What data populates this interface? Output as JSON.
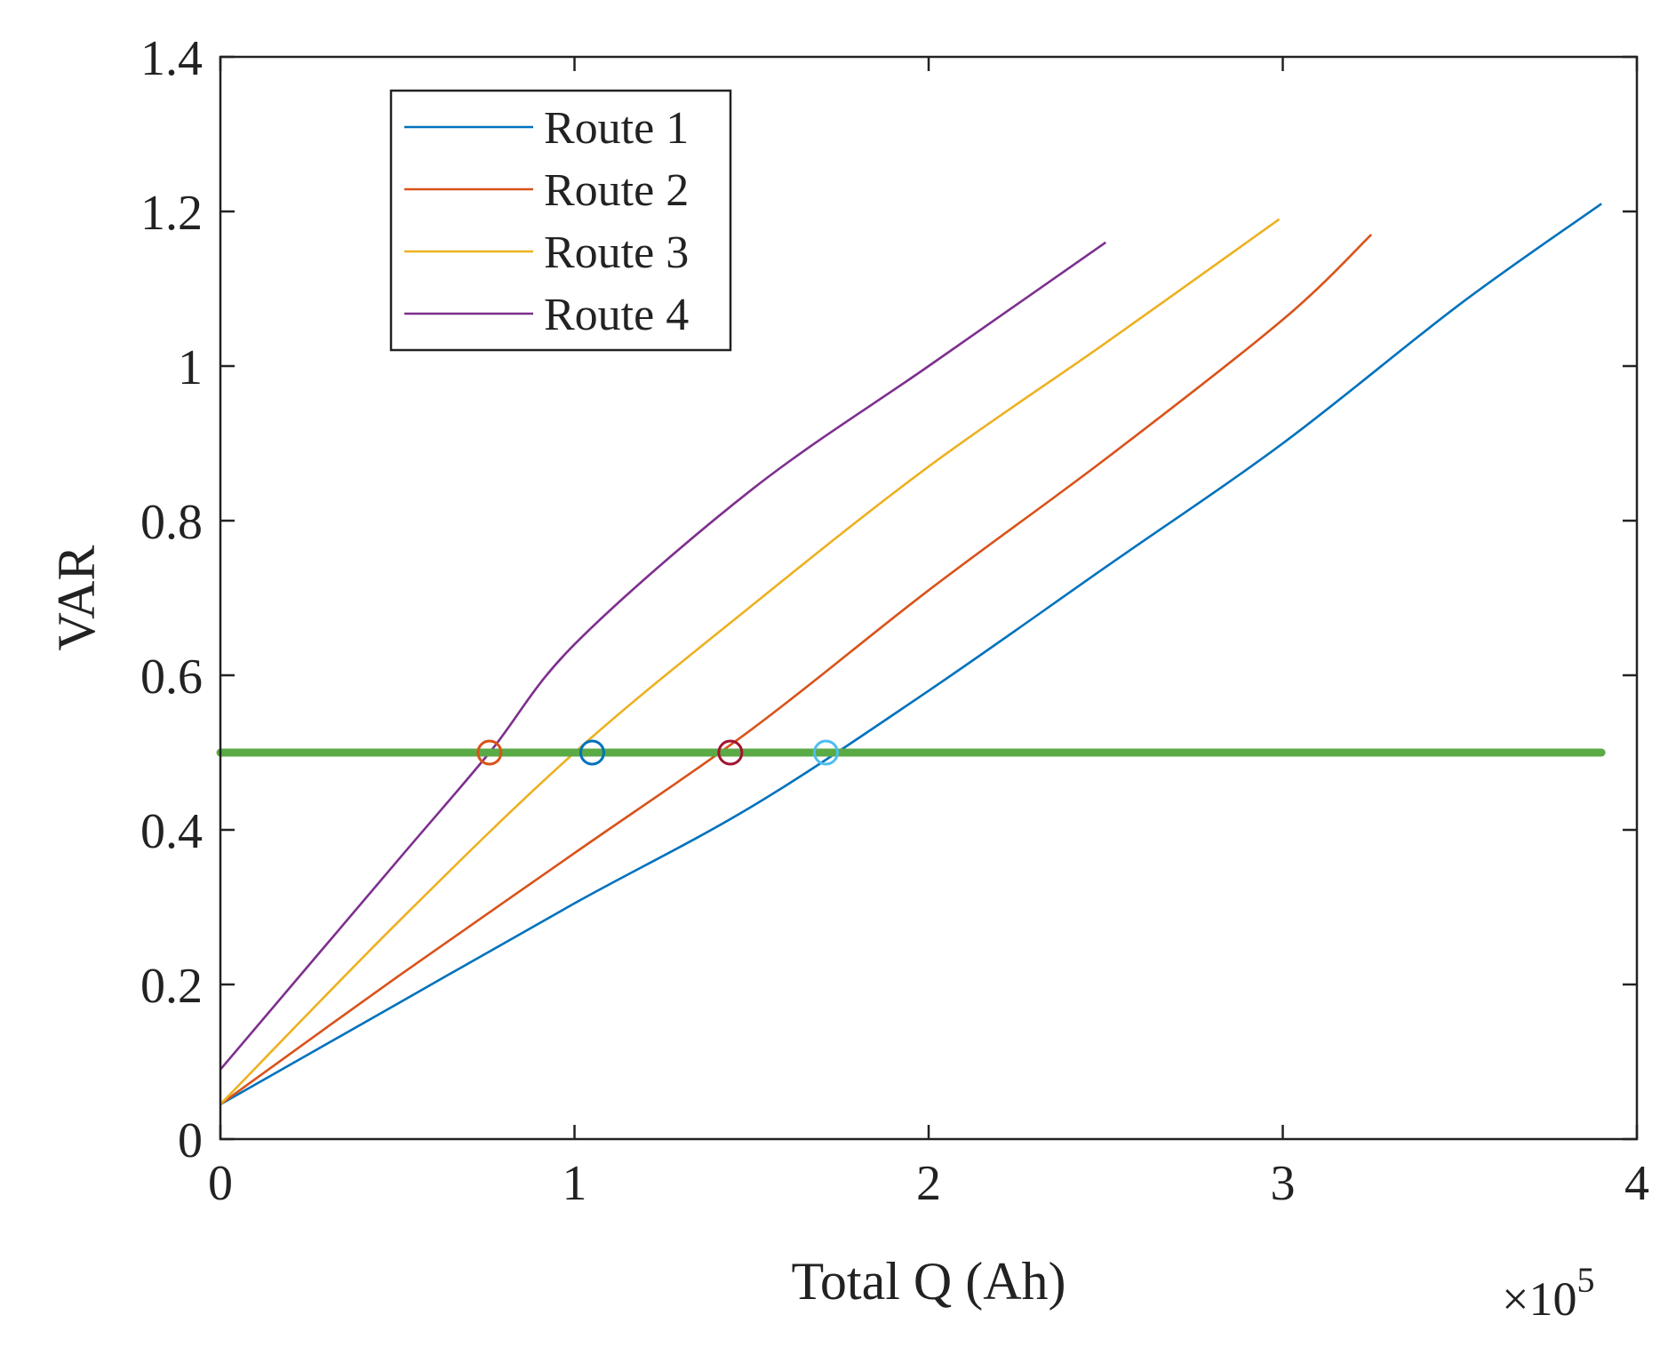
{
  "chart_data": {
    "type": "line",
    "xlabel": "Total Q (Ah)",
    "ylabel": "VAR",
    "x_multiplier_label": "×10",
    "x_multiplier_exponent": "5",
    "xlim": [
      0,
      4
    ],
    "ylim": [
      0,
      1.4
    ],
    "xticks": [
      "0",
      "1",
      "2",
      "3",
      "4"
    ],
    "yticks": [
      "0",
      "0.2",
      "0.4",
      "0.6",
      "0.8",
      "1",
      "1.2",
      "1.4"
    ],
    "grid": false,
    "legend_position": "top-left",
    "threshold": {
      "y": 0.5,
      "x_range": [
        0,
        3.9
      ],
      "color": "#5aaa46"
    },
    "series": [
      {
        "name": "Route 1",
        "color": "#0072bd",
        "x": [
          0,
          0.5,
          1.0,
          1.5,
          2.0,
          2.5,
          3.0,
          3.5,
          3.9
        ],
        "y": [
          0.045,
          0.175,
          0.305,
          0.43,
          0.58,
          0.74,
          0.9,
          1.08,
          1.21
        ]
      },
      {
        "name": "Route 2",
        "color": "#d95319",
        "x": [
          0,
          0.5,
          1.0,
          1.5,
          2.0,
          2.5,
          3.0,
          3.25
        ],
        "y": [
          0.045,
          0.21,
          0.37,
          0.53,
          0.71,
          0.88,
          1.06,
          1.17
        ]
      },
      {
        "name": "Route 3",
        "color": "#edb120",
        "x": [
          0,
          0.5,
          1.0,
          1.5,
          2.0,
          2.5,
          2.99
        ],
        "y": [
          0.045,
          0.28,
          0.5,
          0.69,
          0.87,
          1.03,
          1.19
        ]
      },
      {
        "name": "Route 4",
        "color": "#7e2f8e",
        "x": [
          0,
          0.5,
          0.76,
          1.0,
          1.5,
          2.0,
          2.5
        ],
        "y": [
          0.09,
          0.36,
          0.5,
          0.64,
          0.84,
          1.0,
          1.16
        ]
      }
    ],
    "markers": [
      {
        "x": 0.76,
        "y": 0.5,
        "color": "#d95319"
      },
      {
        "x": 1.05,
        "y": 0.5,
        "color": "#0072bd"
      },
      {
        "x": 1.44,
        "y": 0.5,
        "color": "#a2142f"
      },
      {
        "x": 1.71,
        "y": 0.5,
        "color": "#4dbeee"
      }
    ]
  }
}
